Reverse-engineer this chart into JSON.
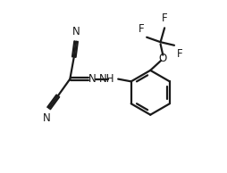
{
  "background": "#ffffff",
  "line_color": "#1a1a1a",
  "line_width": 1.6,
  "font_size": 8.5,
  "xlim": [
    0,
    5.6
  ],
  "ylim": [
    0.2,
    4.2
  ],
  "figsize": [
    2.55,
    1.94
  ],
  "dpi": 100
}
